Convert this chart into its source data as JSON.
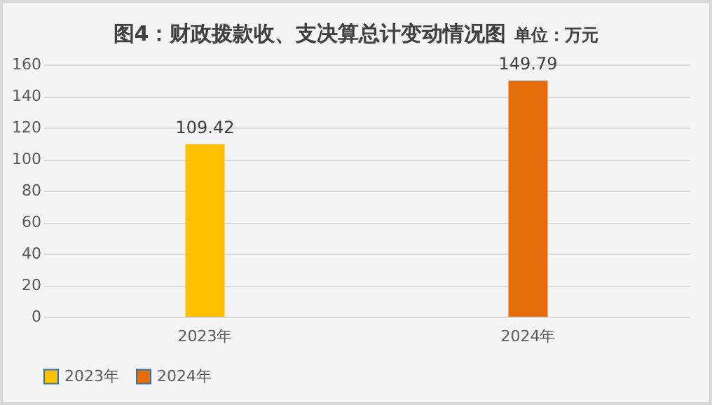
{
  "chart_data": {
    "type": "bar",
    "title": "图4：财政拨款收、支决算总计变动情况图",
    "subtitle": "单位：万元",
    "categories": [
      "2023年",
      "2024年"
    ],
    "series": [
      {
        "name": "2023年",
        "color": "#ffc000",
        "values": [
          109.42,
          null
        ]
      },
      {
        "name": "2024年",
        "color": "#e46c0a",
        "values": [
          null,
          149.79
        ]
      }
    ],
    "ylim": [
      0,
      160
    ],
    "yticks": [
      0,
      20,
      40,
      60,
      80,
      100,
      120,
      140,
      160
    ],
    "grid": "y",
    "legend": "bottom",
    "data_labels": true
  }
}
